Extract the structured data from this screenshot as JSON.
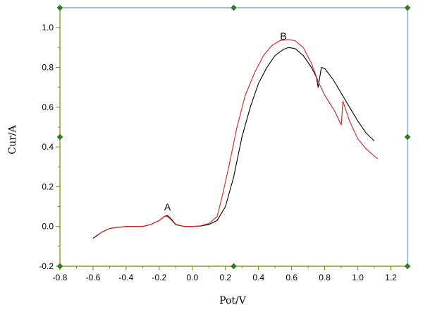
{
  "chart_data": {
    "type": "line",
    "xlabel": "Pot/V",
    "ylabel": "Cur/A",
    "xlim": [
      -0.8,
      1.3
    ],
    "ylim": [
      -0.2,
      1.1
    ],
    "xticks": [
      "-0.8",
      "-0.6",
      "-0.4",
      "-0.2",
      "0.0",
      "0.2",
      "0.4",
      "0.6",
      "0.8",
      "1.0",
      "1.2"
    ],
    "yticks": [
      "-0.2",
      "0.0",
      "0.2",
      "0.4",
      "0.6",
      "0.8",
      "1.0"
    ],
    "annotations": [
      {
        "text": "A",
        "x": -0.15,
        "y": 0.08
      },
      {
        "text": "B",
        "x": 0.55,
        "y": 0.94
      }
    ],
    "series": [
      {
        "color": "#000000",
        "points": [
          [
            -0.6,
            -0.06
          ],
          [
            -0.55,
            -0.03
          ],
          [
            -0.5,
            -0.01
          ],
          [
            -0.45,
            -0.005
          ],
          [
            -0.4,
            0.0
          ],
          [
            -0.3,
            0.0
          ],
          [
            -0.25,
            0.01
          ],
          [
            -0.2,
            0.03
          ],
          [
            -0.17,
            0.05
          ],
          [
            -0.15,
            0.055
          ],
          [
            -0.13,
            0.04
          ],
          [
            -0.1,
            0.01
          ],
          [
            -0.05,
            0.0
          ],
          [
            0.0,
            0.0
          ],
          [
            0.05,
            0.002
          ],
          [
            0.1,
            0.01
          ],
          [
            0.15,
            0.03
          ],
          [
            0.2,
            0.1
          ],
          [
            0.25,
            0.25
          ],
          [
            0.3,
            0.45
          ],
          [
            0.35,
            0.6
          ],
          [
            0.4,
            0.72
          ],
          [
            0.45,
            0.8
          ],
          [
            0.5,
            0.86
          ],
          [
            0.55,
            0.89
          ],
          [
            0.58,
            0.9
          ],
          [
            0.62,
            0.895
          ],
          [
            0.67,
            0.86
          ],
          [
            0.72,
            0.8
          ],
          [
            0.75,
            0.75
          ],
          [
            0.76,
            0.7
          ],
          [
            0.78,
            0.8
          ],
          [
            0.8,
            0.795
          ],
          [
            0.85,
            0.74
          ],
          [
            0.9,
            0.67
          ],
          [
            0.95,
            0.6
          ],
          [
            1.0,
            0.53
          ],
          [
            1.05,
            0.47
          ],
          [
            1.1,
            0.43
          ]
        ]
      },
      {
        "color": "#d41f1f",
        "points": [
          [
            -0.58,
            -0.05
          ],
          [
            -0.55,
            -0.03
          ],
          [
            -0.5,
            -0.01
          ],
          [
            -0.45,
            -0.005
          ],
          [
            -0.4,
            0.0
          ],
          [
            -0.3,
            0.0
          ],
          [
            -0.25,
            0.01
          ],
          [
            -0.2,
            0.03
          ],
          [
            -0.17,
            0.05
          ],
          [
            -0.15,
            0.05
          ],
          [
            -0.13,
            0.035
          ],
          [
            -0.1,
            0.008
          ],
          [
            -0.05,
            0.0
          ],
          [
            0.0,
            0.0
          ],
          [
            0.05,
            0.003
          ],
          [
            0.1,
            0.015
          ],
          [
            0.15,
            0.05
          ],
          [
            0.18,
            0.15
          ],
          [
            0.22,
            0.3
          ],
          [
            0.27,
            0.5
          ],
          [
            0.32,
            0.66
          ],
          [
            0.38,
            0.78
          ],
          [
            0.43,
            0.86
          ],
          [
            0.48,
            0.91
          ],
          [
            0.53,
            0.935
          ],
          [
            0.58,
            0.94
          ],
          [
            0.62,
            0.935
          ],
          [
            0.67,
            0.9
          ],
          [
            0.72,
            0.82
          ],
          [
            0.76,
            0.73
          ],
          [
            0.8,
            0.66
          ],
          [
            0.83,
            0.62
          ],
          [
            0.86,
            0.58
          ],
          [
            0.9,
            0.51
          ],
          [
            0.91,
            0.63
          ],
          [
            0.95,
            0.53
          ],
          [
            1.0,
            0.44
          ],
          [
            1.05,
            0.39
          ],
          [
            1.12,
            0.34
          ]
        ]
      }
    ]
  }
}
